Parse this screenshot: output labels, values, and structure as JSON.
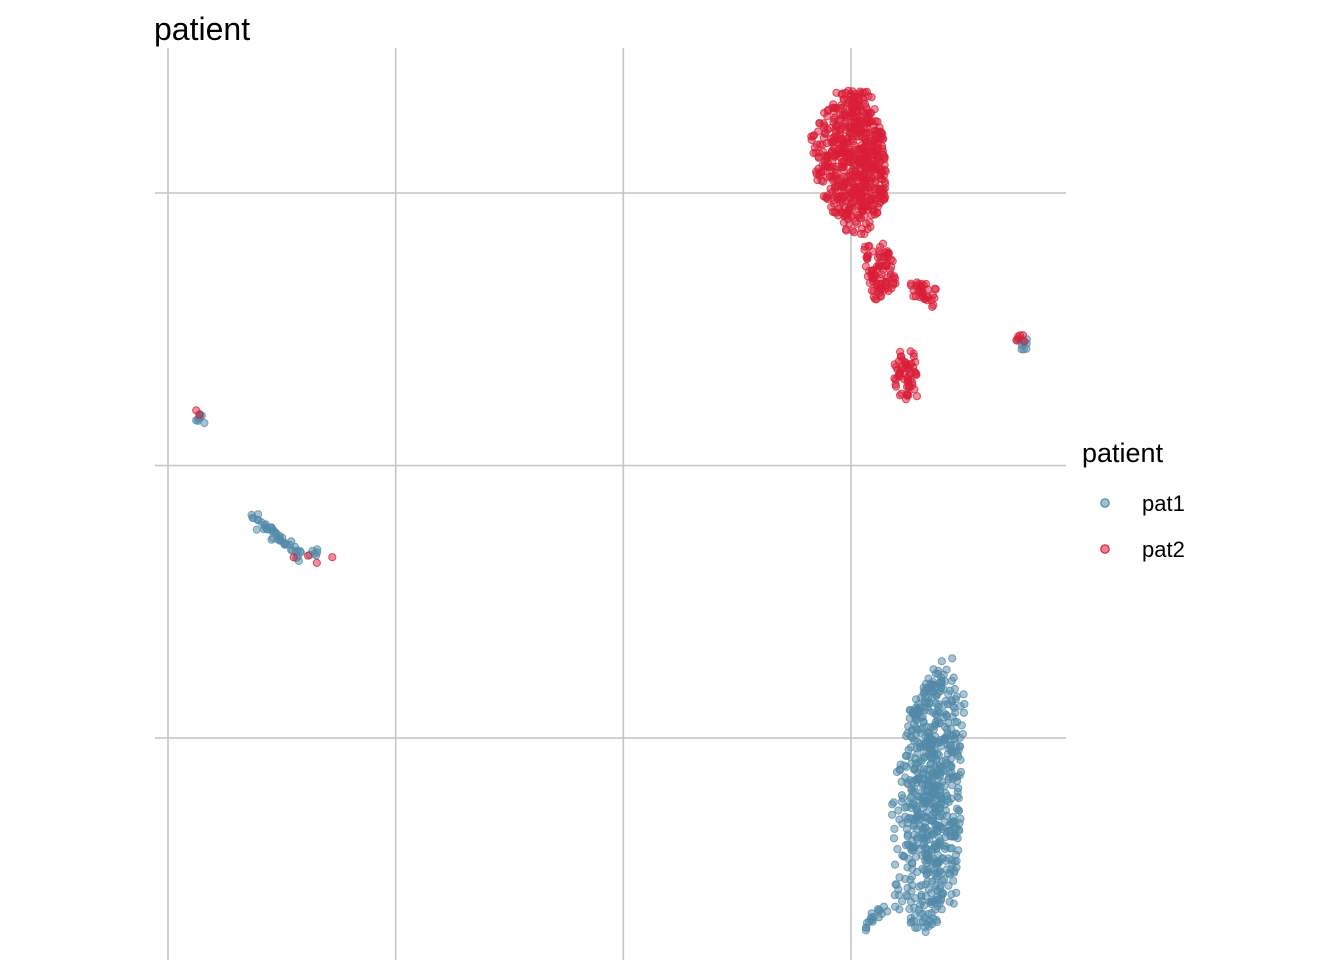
{
  "chart_data": {
    "type": "scatter",
    "title": "patient",
    "xlabel": "",
    "ylabel": "",
    "x_ticks": [
      -10,
      -5,
      0,
      5
    ],
    "y_ticks": [
      5,
      0,
      -5
    ],
    "xlim": [
      -10.3,
      9.5
    ],
    "ylim": [
      -8.6,
      7.9
    ],
    "grid": true,
    "legend": {
      "title": "patient",
      "position": "right",
      "entries": [
        "pat1",
        "pat2"
      ]
    },
    "colors": {
      "pat1": "#5289a8",
      "pat2": "#d91e38"
    },
    "series": [
      {
        "name": "pat1",
        "clusters": [
          {
            "kind": "blob",
            "count": 680,
            "center": [
              6.75,
              -6.1
            ],
            "sx": 0.38,
            "sy": 1.55,
            "shape": [
              [
                6.0,
                -8.3
              ],
              [
                6.6,
                -8.6
              ],
              [
                7.3,
                -8.1
              ],
              [
                7.45,
                -6.0
              ],
              [
                7.5,
                -4.0
              ],
              [
                7.3,
                -3.5
              ],
              [
                6.9,
                -3.6
              ],
              [
                6.2,
                -4.6
              ],
              [
                5.9,
                -6.0
              ],
              [
                5.85,
                -7.5
              ]
            ]
          },
          {
            "kind": "line",
            "count": 18,
            "from": [
              5.25,
              -8.5
            ],
            "to": [
              5.75,
              -8.1
            ]
          },
          {
            "kind": "line",
            "count": 45,
            "from": [
              -8.1,
              -0.95
            ],
            "to": [
              -7.1,
              -1.65
            ]
          },
          {
            "kind": "line",
            "count": 6,
            "from": [
              -6.9,
              -1.6
            ],
            "to": [
              -6.7,
              -1.62
            ]
          },
          {
            "kind": "line",
            "count": 8,
            "from": [
              -9.35,
              0.9
            ],
            "to": [
              -9.3,
              0.85
            ]
          },
          {
            "kind": "line",
            "count": 10,
            "from": [
              8.75,
              2.35
            ],
            "to": [
              8.8,
              2.1
            ]
          }
        ]
      },
      {
        "name": "pat2",
        "clusters": [
          {
            "kind": "blob",
            "count": 620,
            "center": [
              5.2,
              5.6
            ],
            "sx": 0.55,
            "sy": 0.7,
            "shape": [
              [
                4.1,
                6.1
              ],
              [
                4.7,
                6.9
              ],
              [
                5.4,
                6.9
              ],
              [
                5.7,
                6.1
              ],
              [
                5.8,
                5.0
              ],
              [
                5.4,
                4.2
              ],
              [
                4.9,
                4.3
              ],
              [
                4.3,
                5.0
              ]
            ]
          },
          {
            "kind": "blob",
            "count": 90,
            "center": [
              5.6,
              3.6
            ],
            "sx": 0.3,
            "sy": 0.35,
            "shape": [
              [
                5.2,
                4.1
              ],
              [
                5.9,
                4.1
              ],
              [
                6.0,
                3.2
              ],
              [
                5.5,
                3.0
              ]
            ]
          },
          {
            "kind": "blob",
            "count": 35,
            "center": [
              6.55,
              3.2
            ],
            "sx": 0.2,
            "sy": 0.15,
            "shape": [
              [
                6.3,
                3.4
              ],
              [
                6.9,
                3.3
              ],
              [
                6.8,
                2.9
              ],
              [
                6.3,
                3.0
              ]
            ]
          },
          {
            "kind": "blob",
            "count": 60,
            "center": [
              6.2,
              1.65
            ],
            "sx": 0.16,
            "sy": 0.25,
            "shape": [
              [
                5.95,
                2.1
              ],
              [
                6.45,
                2.1
              ],
              [
                6.45,
                1.2
              ],
              [
                5.95,
                1.2
              ]
            ]
          },
          {
            "kind": "line",
            "count": 6,
            "from": [
              8.65,
              2.35
            ],
            "to": [
              8.75,
              2.35
            ]
          },
          {
            "kind": "line",
            "count": 4,
            "from": [
              -7.2,
              -1.65
            ],
            "to": [
              -6.4,
              -1.68
            ]
          },
          {
            "kind": "line",
            "count": 2,
            "from": [
              -9.37,
              0.95
            ],
            "to": [
              -9.36,
              0.94
            ]
          }
        ]
      }
    ]
  }
}
